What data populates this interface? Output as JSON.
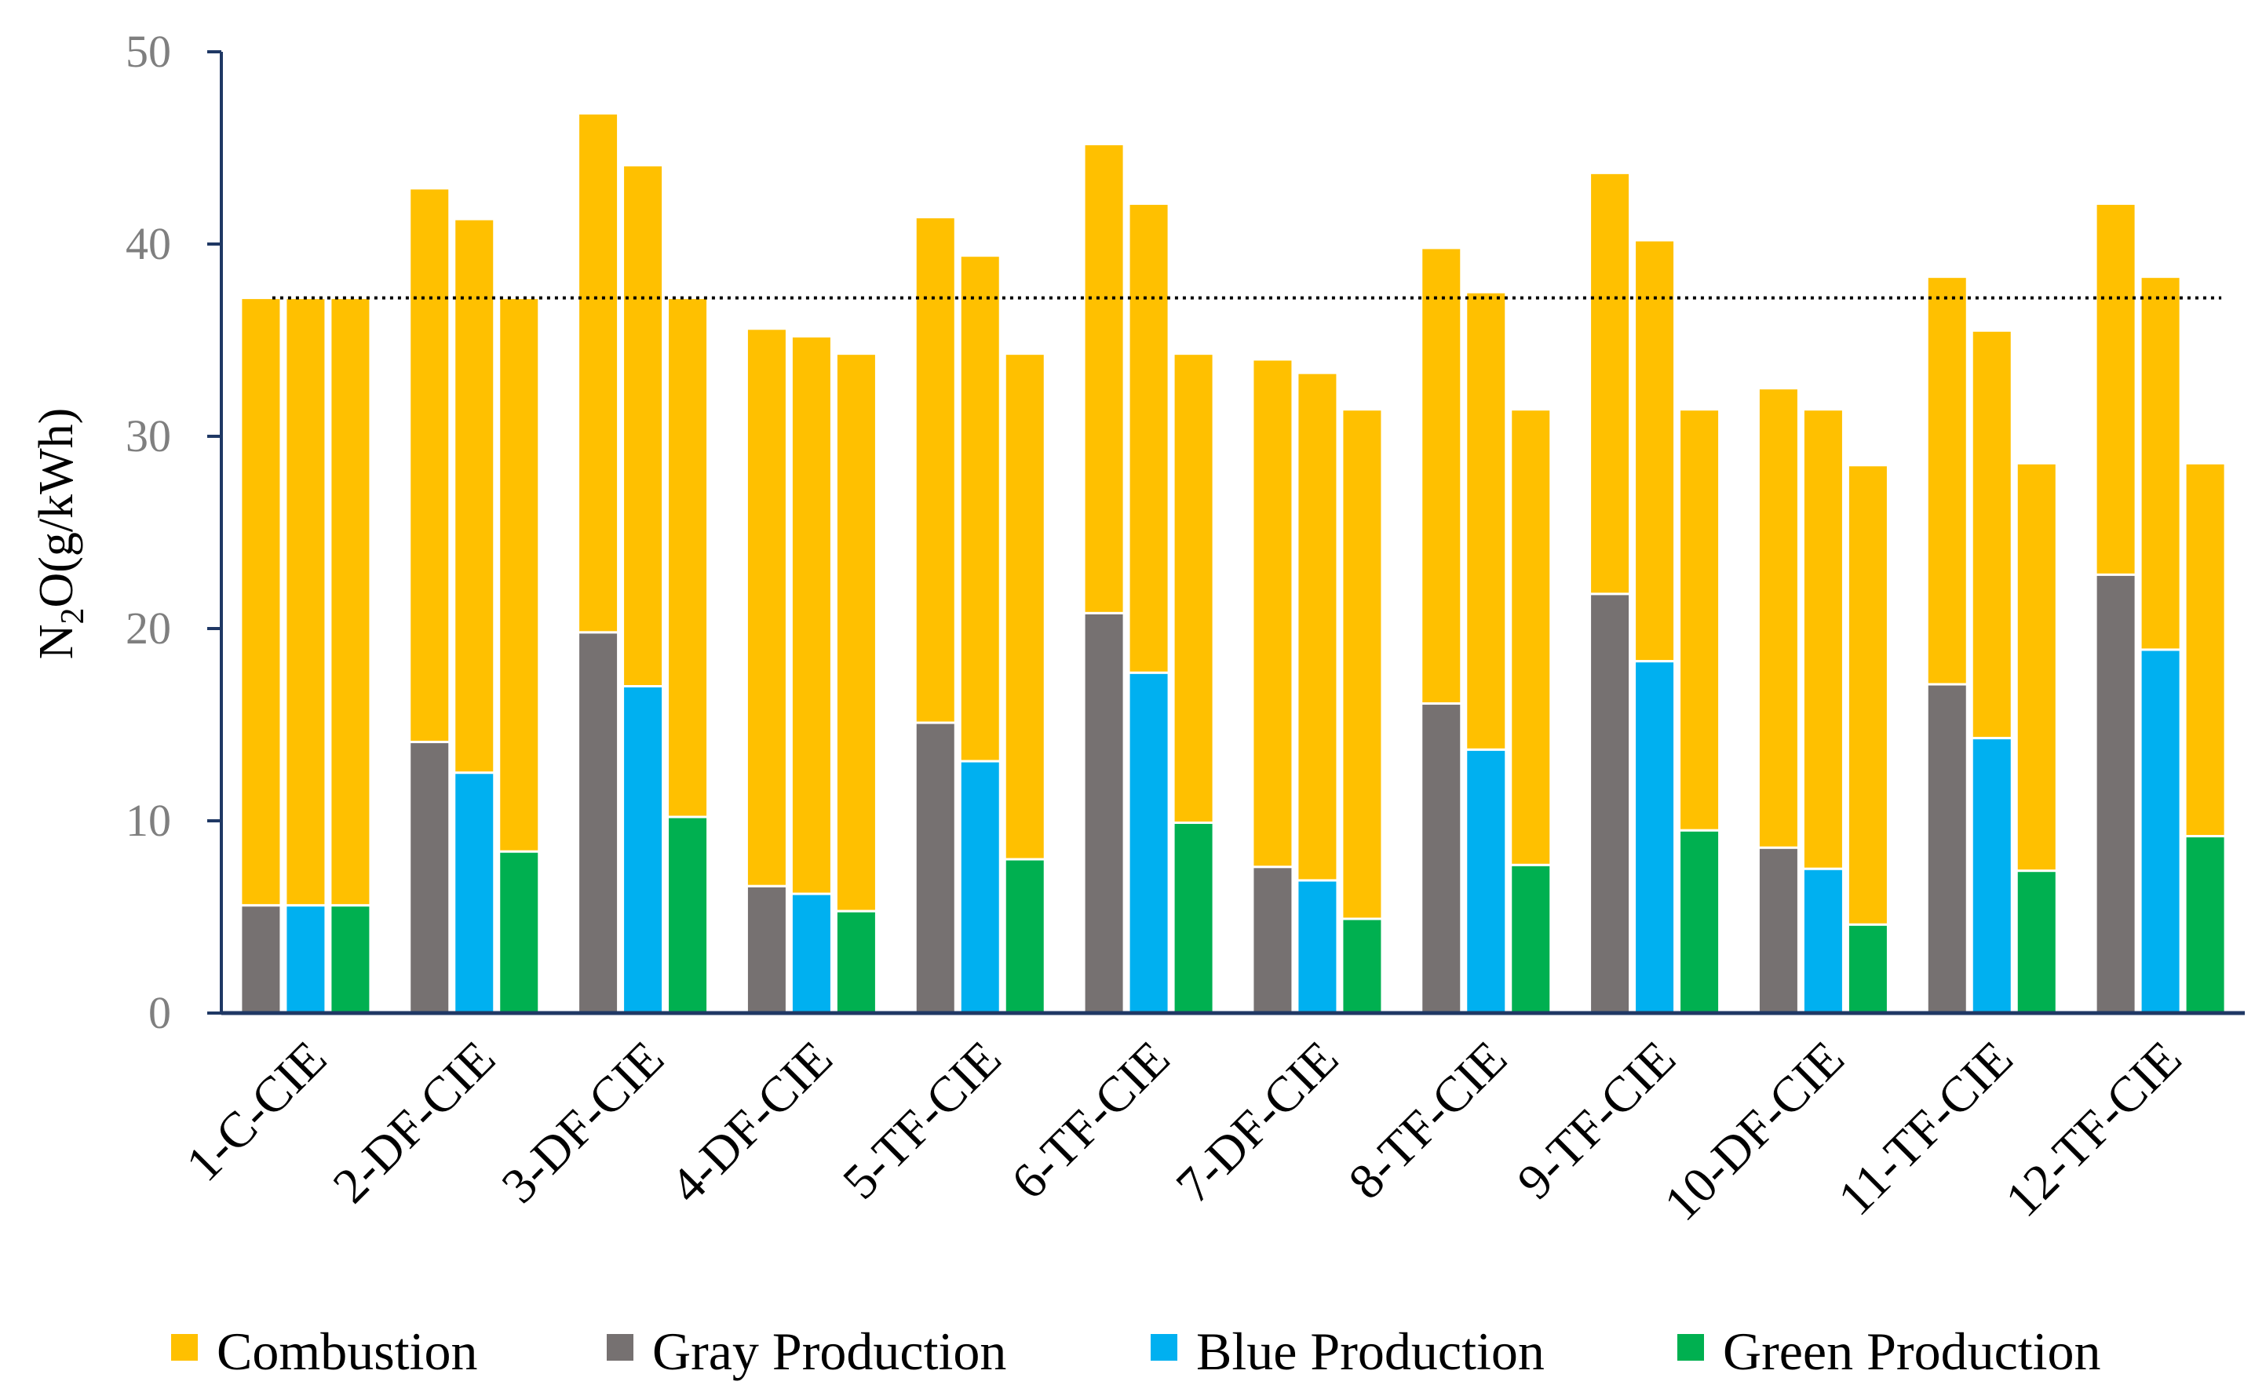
{
  "chart_data": {
    "type": "bar",
    "stacked": true,
    "title": "",
    "xlabel": "",
    "ylabel_main": "N",
    "ylabel_sub": "2",
    "ylabel_rest": "O(g/kWh)",
    "ylim": [
      0,
      50
    ],
    "yticks": [
      "0",
      "10",
      "20",
      "30",
      "40",
      "50"
    ],
    "grid": false,
    "legend_position": "bottom",
    "reference_line": 37.2,
    "categories": [
      "1-C-CIE",
      "2-DF-CIE",
      "3-DF-CIE",
      "4-DF-CIE",
      "5-TF-CIE",
      "6-TF-CIE",
      "7-DF-CIE",
      "8-TF-CIE",
      "9-TF-CIE",
      "10-DF-CIE",
      "11-TF-CIE",
      "12-TF-CIE"
    ],
    "bars_per_category": [
      [
        {
          "production": "Gray Production",
          "production_value": 5.6,
          "total": 37.2
        },
        {
          "production": "Blue Production",
          "production_value": 5.6,
          "total": 37.2
        },
        {
          "production": "Green Production",
          "production_value": 5.6,
          "total": 37.2
        }
      ],
      [
        {
          "production": "Gray Production",
          "production_value": 14.1,
          "total": 42.9
        },
        {
          "production": "Blue Production",
          "production_value": 12.5,
          "total": 41.3
        },
        {
          "production": "Green Production",
          "production_value": 8.4,
          "total": 37.2
        }
      ],
      [
        {
          "production": "Gray Production",
          "production_value": 19.8,
          "total": 46.8
        },
        {
          "production": "Blue Production",
          "production_value": 17.0,
          "total": 44.1
        },
        {
          "production": "Green Production",
          "production_value": 10.2,
          "total": 37.2
        }
      ],
      [
        {
          "production": "Gray Production",
          "production_value": 6.6,
          "total": 35.6
        },
        {
          "production": "Blue Production",
          "production_value": 6.2,
          "total": 35.2
        },
        {
          "production": "Green Production",
          "production_value": 5.3,
          "total": 34.3
        }
      ],
      [
        {
          "production": "Gray Production",
          "production_value": 15.1,
          "total": 41.4
        },
        {
          "production": "Blue Production",
          "production_value": 13.1,
          "total": 39.4
        },
        {
          "production": "Green Production",
          "production_value": 8.0,
          "total": 34.3
        }
      ],
      [
        {
          "production": "Gray Production",
          "production_value": 20.8,
          "total": 45.2
        },
        {
          "production": "Blue Production",
          "production_value": 17.7,
          "total": 42.1
        },
        {
          "production": "Green Production",
          "production_value": 9.9,
          "total": 34.3
        }
      ],
      [
        {
          "production": "Gray Production",
          "production_value": 7.6,
          "total": 34.0
        },
        {
          "production": "Blue Production",
          "production_value": 6.9,
          "total": 33.3
        },
        {
          "production": "Green Production",
          "production_value": 4.9,
          "total": 31.4
        }
      ],
      [
        {
          "production": "Gray Production",
          "production_value": 16.1,
          "total": 39.8
        },
        {
          "production": "Blue Production",
          "production_value": 13.7,
          "total": 37.5
        },
        {
          "production": "Green Production",
          "production_value": 7.7,
          "total": 31.4
        }
      ],
      [
        {
          "production": "Gray Production",
          "production_value": 21.8,
          "total": 43.7
        },
        {
          "production": "Blue Production",
          "production_value": 18.3,
          "total": 40.2
        },
        {
          "production": "Green Production",
          "production_value": 9.5,
          "total": 31.4
        }
      ],
      [
        {
          "production": "Gray Production",
          "production_value": 8.6,
          "total": 32.5
        },
        {
          "production": "Blue Production",
          "production_value": 7.5,
          "total": 31.4
        },
        {
          "production": "Green Production",
          "production_value": 4.6,
          "total": 28.5
        }
      ],
      [
        {
          "production": "Gray Production",
          "production_value": 17.1,
          "total": 38.3
        },
        {
          "production": "Blue Production",
          "production_value": 14.3,
          "total": 35.5
        },
        {
          "production": "Green Production",
          "production_value": 7.4,
          "total": 28.6
        }
      ],
      [
        {
          "production": "Gray Production",
          "production_value": 22.8,
          "total": 42.1
        },
        {
          "production": "Blue Production",
          "production_value": 18.9,
          "total": 38.3
        },
        {
          "production": "Green Production",
          "production_value": 9.2,
          "total": 28.6
        }
      ]
    ],
    "legend": [
      {
        "name": "Combustion",
        "color": "#FFC000"
      },
      {
        "name": "Gray Production",
        "color": "#767171"
      },
      {
        "name": "Blue Production",
        "color": "#00B0F0"
      },
      {
        "name": "Green Production",
        "color": "#00B050"
      }
    ],
    "colors": {
      "Combustion": "#FFC000",
      "Gray Production": "#767171",
      "Blue Production": "#00B0F0",
      "Green Production": "#00B050",
      "axis": "#1F3864",
      "reference_line": "#000000"
    }
  }
}
